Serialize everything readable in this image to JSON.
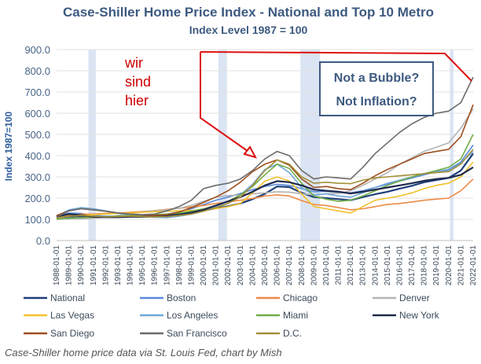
{
  "chart_data": {
    "type": "line",
    "title": "Case-Shiller Home Price Index - National and Top 10 Metro",
    "subtitle": "Index Level 1987 = 100",
    "ylabel": "Index 1987=100",
    "xlabel": "",
    "ylim": [
      0,
      900
    ],
    "yticks": [
      "0.0",
      "100.0",
      "200.0",
      "300.0",
      "400.0",
      "500.0",
      "600.0",
      "700.0",
      "800.0",
      "900.0"
    ],
    "xticks": [
      "1988-01-01",
      "1989-01-01",
      "1990-01-01",
      "1991-01-01",
      "1992-01-01",
      "1993-01-01",
      "1994-01-01",
      "1995-01-01",
      "1996-01-01",
      "1997-01-01",
      "1998-01-01",
      "1999-01-01",
      "2000-01-01",
      "2001-01-01",
      "2002-01-01",
      "2003-01-01",
      "2004-01-01",
      "2005-01-01",
      "2006-01-01",
      "2007-01-01",
      "2008-01-01",
      "2009-01-01",
      "2010-01-01",
      "2011-01-01",
      "2012-01-01",
      "2013-01-01",
      "2014-01-01",
      "2015-01-01",
      "2016-01-01",
      "2017-01-01",
      "2018-01-01",
      "2019-01-01",
      "2020-01-01",
      "2021-01-01",
      "2022-01-01"
    ],
    "x": [
      1988,
      1989,
      1990,
      1991,
      1992,
      1993,
      1994,
      1995,
      1996,
      1997,
      1998,
      1999,
      2000,
      2001,
      2002,
      2003,
      2004,
      2005,
      2006,
      2007,
      2008,
      2009,
      2010,
      2011,
      2012,
      2013,
      2014,
      2015,
      2016,
      2017,
      2018,
      2019,
      2020,
      2021,
      2022
    ],
    "recessions": [
      [
        1990.6,
        1991.2
      ],
      [
        2001.2,
        2001.9
      ],
      [
        2007.9,
        2009.5
      ],
      [
        2020.1,
        2020.4
      ]
    ],
    "grid": "horizontal",
    "legend_position": "bottom",
    "series": [
      {
        "name": "National",
        "color": "#1f3f7a",
        "values": [
          108,
          113,
          115,
          113,
          112,
          113,
          115,
          115,
          117,
          120,
          125,
          133,
          142,
          152,
          162,
          175,
          195,
          220,
          255,
          252,
          225,
          205,
          200,
          195,
          190,
          205,
          218,
          230,
          245,
          258,
          275,
          285,
          295,
          330,
          410
        ]
      },
      {
        "name": "Boston",
        "color": "#5b8bd9",
        "values": [
          115,
          130,
          128,
          118,
          115,
          115,
          117,
          118,
          120,
          125,
          135,
          150,
          170,
          190,
          205,
          222,
          240,
          255,
          265,
          260,
          245,
          230,
          232,
          228,
          225,
          235,
          250,
          265,
          280,
          295,
          310,
          325,
          335,
          370,
          450
        ]
      },
      {
        "name": "Chicago",
        "color": "#ed8b45",
        "values": [
          110,
          118,
          125,
          125,
          128,
          130,
          133,
          137,
          141,
          147,
          152,
          158,
          165,
          175,
          182,
          190,
          198,
          210,
          215,
          210,
          188,
          170,
          165,
          155,
          145,
          150,
          160,
          170,
          175,
          182,
          190,
          195,
          200,
          235,
          290
        ]
      },
      {
        "name": "Denver",
        "color": "#b3b3b3",
        "values": [
          100,
          102,
          103,
          105,
          110,
          118,
          128,
          135,
          140,
          145,
          152,
          165,
          185,
          205,
          212,
          215,
          220,
          225,
          230,
          228,
          220,
          215,
          220,
          222,
          235,
          260,
          290,
          320,
          360,
          390,
          420,
          440,
          460,
          530,
          620
        ]
      },
      {
        "name": "Las Vegas",
        "color": "#f2c12e",
        "values": [
          110,
          115,
          118,
          122,
          125,
          128,
          130,
          133,
          136,
          138,
          140,
          142,
          145,
          150,
          160,
          175,
          225,
          280,
          300,
          280,
          220,
          160,
          150,
          140,
          130,
          160,
          190,
          200,
          210,
          225,
          245,
          260,
          270,
          300,
          370
        ]
      },
      {
        "name": "Los Angeles",
        "color": "#6fa7d8",
        "values": [
          115,
          145,
          155,
          150,
          140,
          130,
          120,
          115,
          110,
          108,
          115,
          125,
          140,
          160,
          185,
          215,
          265,
          335,
          360,
          320,
          250,
          215,
          220,
          210,
          205,
          225,
          250,
          270,
          285,
          300,
          315,
          325,
          330,
          365,
          420
        ]
      },
      {
        "name": "Miami",
        "color": "#71ad47",
        "values": [
          100,
          105,
          108,
          110,
          113,
          115,
          118,
          120,
          122,
          125,
          130,
          138,
          150,
          165,
          185,
          215,
          255,
          310,
          360,
          340,
          270,
          210,
          195,
          185,
          190,
          210,
          235,
          260,
          280,
          300,
          315,
          330,
          345,
          385,
          500
        ]
      },
      {
        "name": "New York",
        "color": "#1f2a4d",
        "values": [
          113,
          125,
          120,
          112,
          110,
          110,
          112,
          112,
          113,
          116,
          122,
          132,
          145,
          165,
          185,
          205,
          230,
          260,
          280,
          275,
          260,
          240,
          235,
          230,
          222,
          230,
          240,
          250,
          260,
          270,
          282,
          290,
          295,
          310,
          345
        ]
      },
      {
        "name": "San Diego",
        "color": "#9e4f1e",
        "values": [
          118,
          140,
          150,
          145,
          138,
          130,
          125,
          120,
          118,
          122,
          135,
          155,
          180,
          205,
          235,
          275,
          325,
          360,
          380,
          355,
          290,
          250,
          255,
          245,
          240,
          270,
          305,
          335,
          360,
          385,
          410,
          420,
          430,
          490,
          640
        ]
      },
      {
        "name": "San Francisco",
        "color": "#6b6b6b",
        "values": [
          110,
          140,
          150,
          145,
          138,
          130,
          125,
          122,
          125,
          140,
          160,
          190,
          245,
          260,
          270,
          290,
          330,
          385,
          420,
          400,
          330,
          290,
          300,
          295,
          290,
          345,
          410,
          460,
          510,
          550,
          580,
          600,
          610,
          650,
          770
        ]
      },
      {
        "name": "D.C.",
        "color": "#a38f39",
        "values": [
          105,
          115,
          118,
          115,
          112,
          113,
          115,
          113,
          112,
          113,
          118,
          125,
          138,
          155,
          175,
          205,
          260,
          330,
          380,
          360,
          300,
          270,
          275,
          270,
          268,
          285,
          295,
          300,
          305,
          310,
          315,
          320,
          325,
          360,
          430
        ]
      }
    ],
    "annotations": {
      "handwritten": [
        "wir",
        "sind",
        "hier"
      ],
      "box_lines": [
        "Not a Bubble?",
        "Not Inflation?"
      ]
    }
  },
  "source": "Case-Shiller home price data via St. Louis Fed, chart by Mish"
}
